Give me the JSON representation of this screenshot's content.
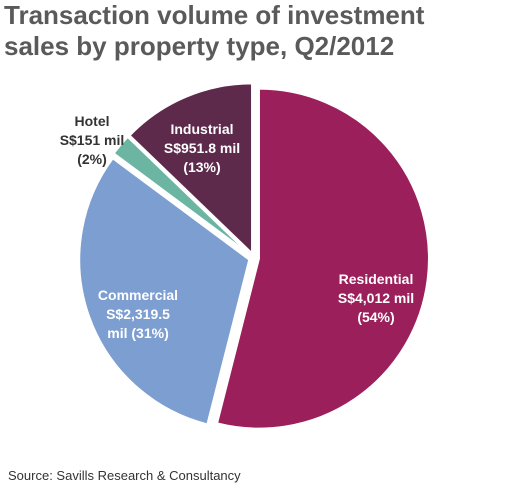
{
  "title_line1": "Transaction volume of investment",
  "title_line2": "sales by property type, Q2/2012",
  "source": "Source: Savills Research & Consultancy",
  "chart_data": {
    "type": "pie",
    "title": "Transaction volume of investment sales by property type, Q2/2012",
    "unit": "S$ mil",
    "slices": [
      {
        "name": "Residential",
        "value": 4012,
        "value_text": "S$4,012 mil",
        "percent_text": "(54%)",
        "color": "#9b1f5a",
        "label_color": "#ffffff"
      },
      {
        "name": "Commercial",
        "value": 2319.5,
        "value_text": "S$2,319.5",
        "percent_text": "mil (31%)",
        "color": "#7d9ed0",
        "label_color": "#ffffff"
      },
      {
        "name": "Hotel",
        "value": 151,
        "value_text": "S$151 mil",
        "percent_text": "(2%)",
        "color": "#6db5a3",
        "label_color": "#333333"
      },
      {
        "name": "Industrial",
        "value": 951.8,
        "value_text": "S$951.8 mil",
        "percent_text": "(13%)",
        "color": "#5e2a4c",
        "label_color": "#ffffff"
      }
    ]
  }
}
